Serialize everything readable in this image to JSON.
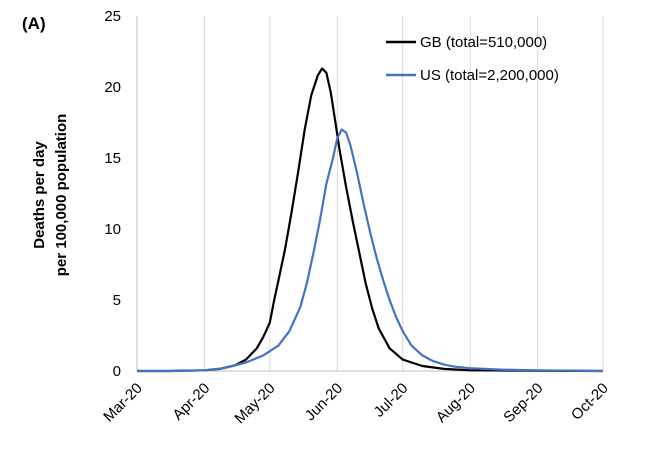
{
  "panel_label": "(A)",
  "chart_data": {
    "type": "line",
    "title": "",
    "xlabel": "",
    "ylabel_lines": [
      "Deaths per day",
      "per 100,000 population"
    ],
    "x_tick_labels": [
      "Mar-20",
      "Apr-20",
      "May-20",
      "Jun-20",
      "Jul-20",
      "Aug-20",
      "Sep-20",
      "Oct-20"
    ],
    "y_ticks": [
      0,
      5,
      10,
      15,
      20,
      25
    ],
    "xlim": [
      "2020-03-01",
      "2020-10-01"
    ],
    "ylim": [
      0,
      25
    ],
    "grid": "vertical",
    "legend_position": "top-right",
    "colors": {
      "GB": "#000000",
      "US": "#4472C4"
    },
    "series": [
      {
        "name": "GB (total=510,000)",
        "key": "GB",
        "points": [
          [
            "2020-03-01",
            0
          ],
          [
            "2020-03-15",
            0
          ],
          [
            "2020-04-01",
            0.05
          ],
          [
            "2020-04-08",
            0.15
          ],
          [
            "2020-04-15",
            0.4
          ],
          [
            "2020-04-20",
            0.8
          ],
          [
            "2020-04-25",
            1.6
          ],
          [
            "2020-04-28",
            2.4
          ],
          [
            "2020-05-01",
            3.4
          ],
          [
            "2020-05-03",
            5.0
          ],
          [
            "2020-05-05",
            6.4
          ],
          [
            "2020-05-08",
            8.6
          ],
          [
            "2020-05-11",
            11.2
          ],
          [
            "2020-05-14",
            14.0
          ],
          [
            "2020-05-17",
            17.0
          ],
          [
            "2020-05-20",
            19.4
          ],
          [
            "2020-05-23",
            20.8
          ],
          [
            "2020-05-25",
            21.3
          ],
          [
            "2020-05-27",
            21.0
          ],
          [
            "2020-05-29",
            19.6
          ],
          [
            "2020-05-31",
            17.6
          ],
          [
            "2020-06-02",
            15.6
          ],
          [
            "2020-06-05",
            13.0
          ],
          [
            "2020-06-08",
            10.6
          ],
          [
            "2020-06-11",
            8.4
          ],
          [
            "2020-06-14",
            6.2
          ],
          [
            "2020-06-17",
            4.4
          ],
          [
            "2020-06-20",
            3.0
          ],
          [
            "2020-06-25",
            1.6
          ],
          [
            "2020-07-01",
            0.8
          ],
          [
            "2020-07-10",
            0.35
          ],
          [
            "2020-07-20",
            0.15
          ],
          [
            "2020-08-01",
            0.05
          ],
          [
            "2020-10-01",
            0
          ]
        ]
      },
      {
        "name": "US (total=2,200,000)",
        "key": "US",
        "points": [
          [
            "2020-03-01",
            0
          ],
          [
            "2020-03-20",
            0
          ],
          [
            "2020-04-01",
            0.05
          ],
          [
            "2020-04-10",
            0.2
          ],
          [
            "2020-04-20",
            0.6
          ],
          [
            "2020-04-28",
            1.1
          ],
          [
            "2020-05-05",
            1.8
          ],
          [
            "2020-05-10",
            2.8
          ],
          [
            "2020-05-15",
            4.5
          ],
          [
            "2020-05-18",
            6.2
          ],
          [
            "2020-05-21",
            8.3
          ],
          [
            "2020-05-24",
            10.6
          ],
          [
            "2020-05-27",
            13.2
          ],
          [
            "2020-05-30",
            15.0
          ],
          [
            "2020-06-01",
            16.4
          ],
          [
            "2020-06-03",
            17.0
          ],
          [
            "2020-06-05",
            16.8
          ],
          [
            "2020-06-07",
            15.9
          ],
          [
            "2020-06-10",
            14.0
          ],
          [
            "2020-06-13",
            11.8
          ],
          [
            "2020-06-16",
            9.8
          ],
          [
            "2020-06-19",
            8.0
          ],
          [
            "2020-06-22",
            6.4
          ],
          [
            "2020-06-25",
            5.0
          ],
          [
            "2020-06-28",
            3.8
          ],
          [
            "2020-07-01",
            2.8
          ],
          [
            "2020-07-05",
            1.8
          ],
          [
            "2020-07-10",
            1.1
          ],
          [
            "2020-07-15",
            0.7
          ],
          [
            "2020-07-20",
            0.45
          ],
          [
            "2020-07-25",
            0.3
          ],
          [
            "2020-08-01",
            0.2
          ],
          [
            "2020-08-15",
            0.1
          ],
          [
            "2020-09-01",
            0.05
          ],
          [
            "2020-10-01",
            0
          ]
        ]
      }
    ]
  }
}
